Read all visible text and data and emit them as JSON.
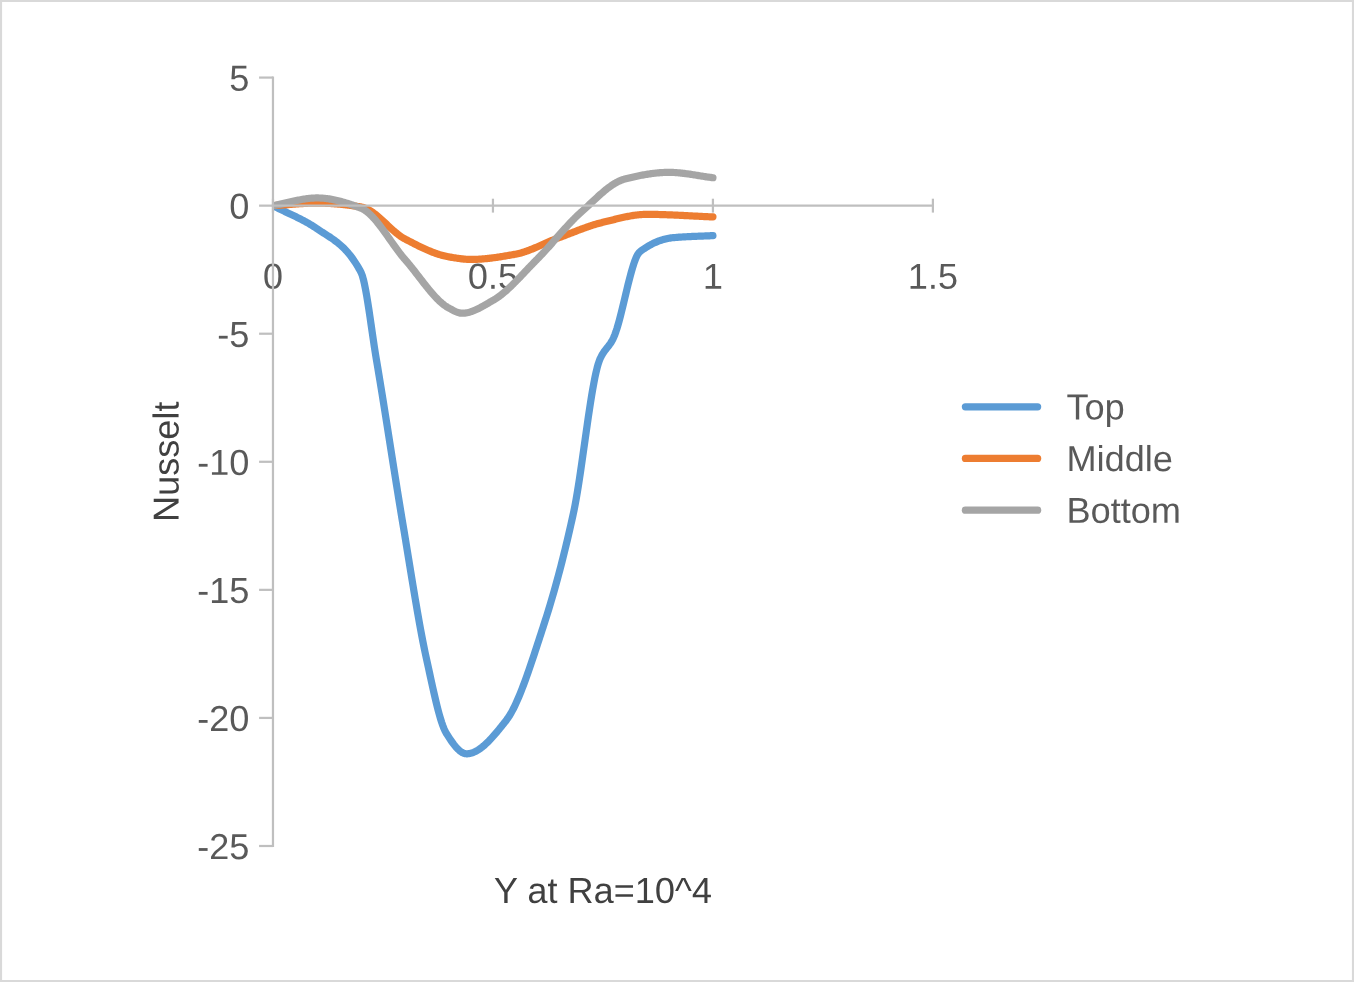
{
  "chart_data": {
    "type": "line",
    "xlabel": "Y at Ra=10^4",
    "ylabel": "Nusselt",
    "xlim": [
      0,
      1.5
    ],
    "ylim": [
      -25,
      5
    ],
    "xticks": [
      0,
      0.5,
      1,
      1.5
    ],
    "yticks": [
      -25,
      -20,
      -15,
      -10,
      -5,
      0,
      5
    ],
    "grid": false,
    "legend": "right",
    "marker": "none",
    "line_style": "solid",
    "series": [
      {
        "name": "Top",
        "color": "#5b9bd5",
        "x": [
          0,
          0.1,
          0.2,
          0.235,
          0.296,
          0.349,
          0.394,
          0.44,
          0.53,
          0.615,
          0.683,
          0.743,
          0.773,
          0.834,
          0.91,
          1.0
        ],
        "values": [
          0,
          -0.9,
          -2.6,
          -6.0,
          -12.5,
          -17.7,
          -20.6,
          -21.4,
          -20.1,
          -16.4,
          -12.0,
          -6.0,
          -5.2,
          -1.8,
          -1.25,
          -1.17
        ]
      },
      {
        "name": "Middle",
        "color": "#ed7d31",
        "x": [
          0,
          0.1,
          0.2,
          0.3,
          0.4,
          0.45,
          0.55,
          0.65,
          0.75,
          0.85,
          1.0
        ],
        "values": [
          0,
          0.1,
          -0.05,
          -1.3,
          -2.0,
          -2.1,
          -1.9,
          -1.25,
          -0.65,
          -0.34,
          -0.44
        ]
      },
      {
        "name": "Bottom",
        "color": "#a5a5a5",
        "x": [
          0,
          0.1,
          0.2,
          0.3,
          0.4,
          0.43,
          0.5,
          0.6,
          0.7,
          0.8,
          0.9,
          1.0
        ],
        "values": [
          0,
          0.3,
          -0.1,
          -2.1,
          -4.0,
          -4.2,
          -3.7,
          -2.1,
          -0.26,
          1.04,
          1.3,
          1.09
        ]
      }
    ]
  }
}
